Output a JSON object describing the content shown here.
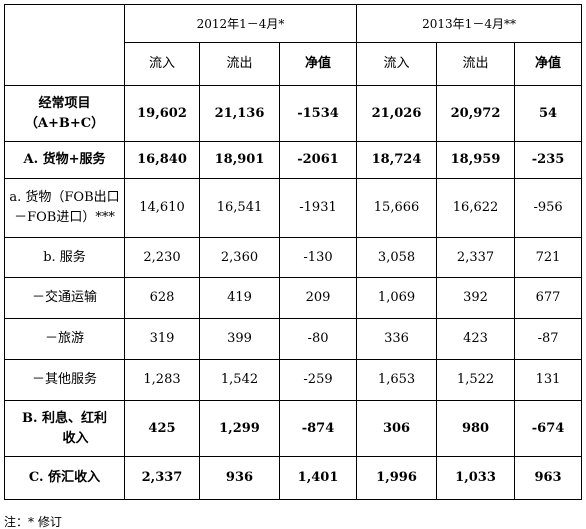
{
  "header": {
    "period_2012": "2012年1－4月*",
    "period_2013": "2013年1－4月**",
    "cols": [
      "流入",
      "流出",
      "净值",
      "流入",
      "流出",
      "净值"
    ]
  },
  "rows": [
    {
      "label": [
        "经常项目",
        "（A+B+C）"
      ],
      "values": [
        "19,602",
        "21,136",
        "-1534",
        "21,026",
        "20,972",
        "54"
      ]
    },
    {
      "label": [
        "A. 货物+服务"
      ],
      "values": [
        "16,840",
        "18,901",
        "-2061",
        "18,724",
        "18,959",
        "-235"
      ]
    },
    {
      "label": [
        "a. 货物（FOB出口",
        "－FOB进口）***"
      ],
      "values": [
        "14,610",
        "16,541",
        "-1931",
        "15,666",
        "16,622",
        "-956"
      ]
    },
    {
      "label": [
        "b. 服务"
      ],
      "values": [
        "2,230",
        "2,360",
        "-130",
        "3,058",
        "2,337",
        "721"
      ]
    },
    {
      "label": [
        "－交通运输"
      ],
      "values": [
        "628",
        "419",
        "209",
        "1,069",
        "392",
        "677"
      ]
    },
    {
      "label": [
        "－旅游"
      ],
      "values": [
        "319",
        "399",
        "-80",
        "336",
        "423",
        "-87"
      ]
    },
    {
      "label": [
        "－其他服务"
      ],
      "values": [
        "1,283",
        "1,542",
        "-259",
        "1,653",
        "1,522",
        "131"
      ]
    },
    {
      "label": [
        "B. 利息、红利",
        "收入"
      ],
      "values": [
        "425",
        "1,299",
        "-874",
        "306",
        "980",
        "-674"
      ]
    },
    {
      "label": [
        "C. 侨汇收入"
      ],
      "values": [
        "2,337",
        "936",
        "1,401",
        "1,996",
        "1,033",
        "963"
      ]
    }
  ],
  "footnote": "注：* 修订"
}
